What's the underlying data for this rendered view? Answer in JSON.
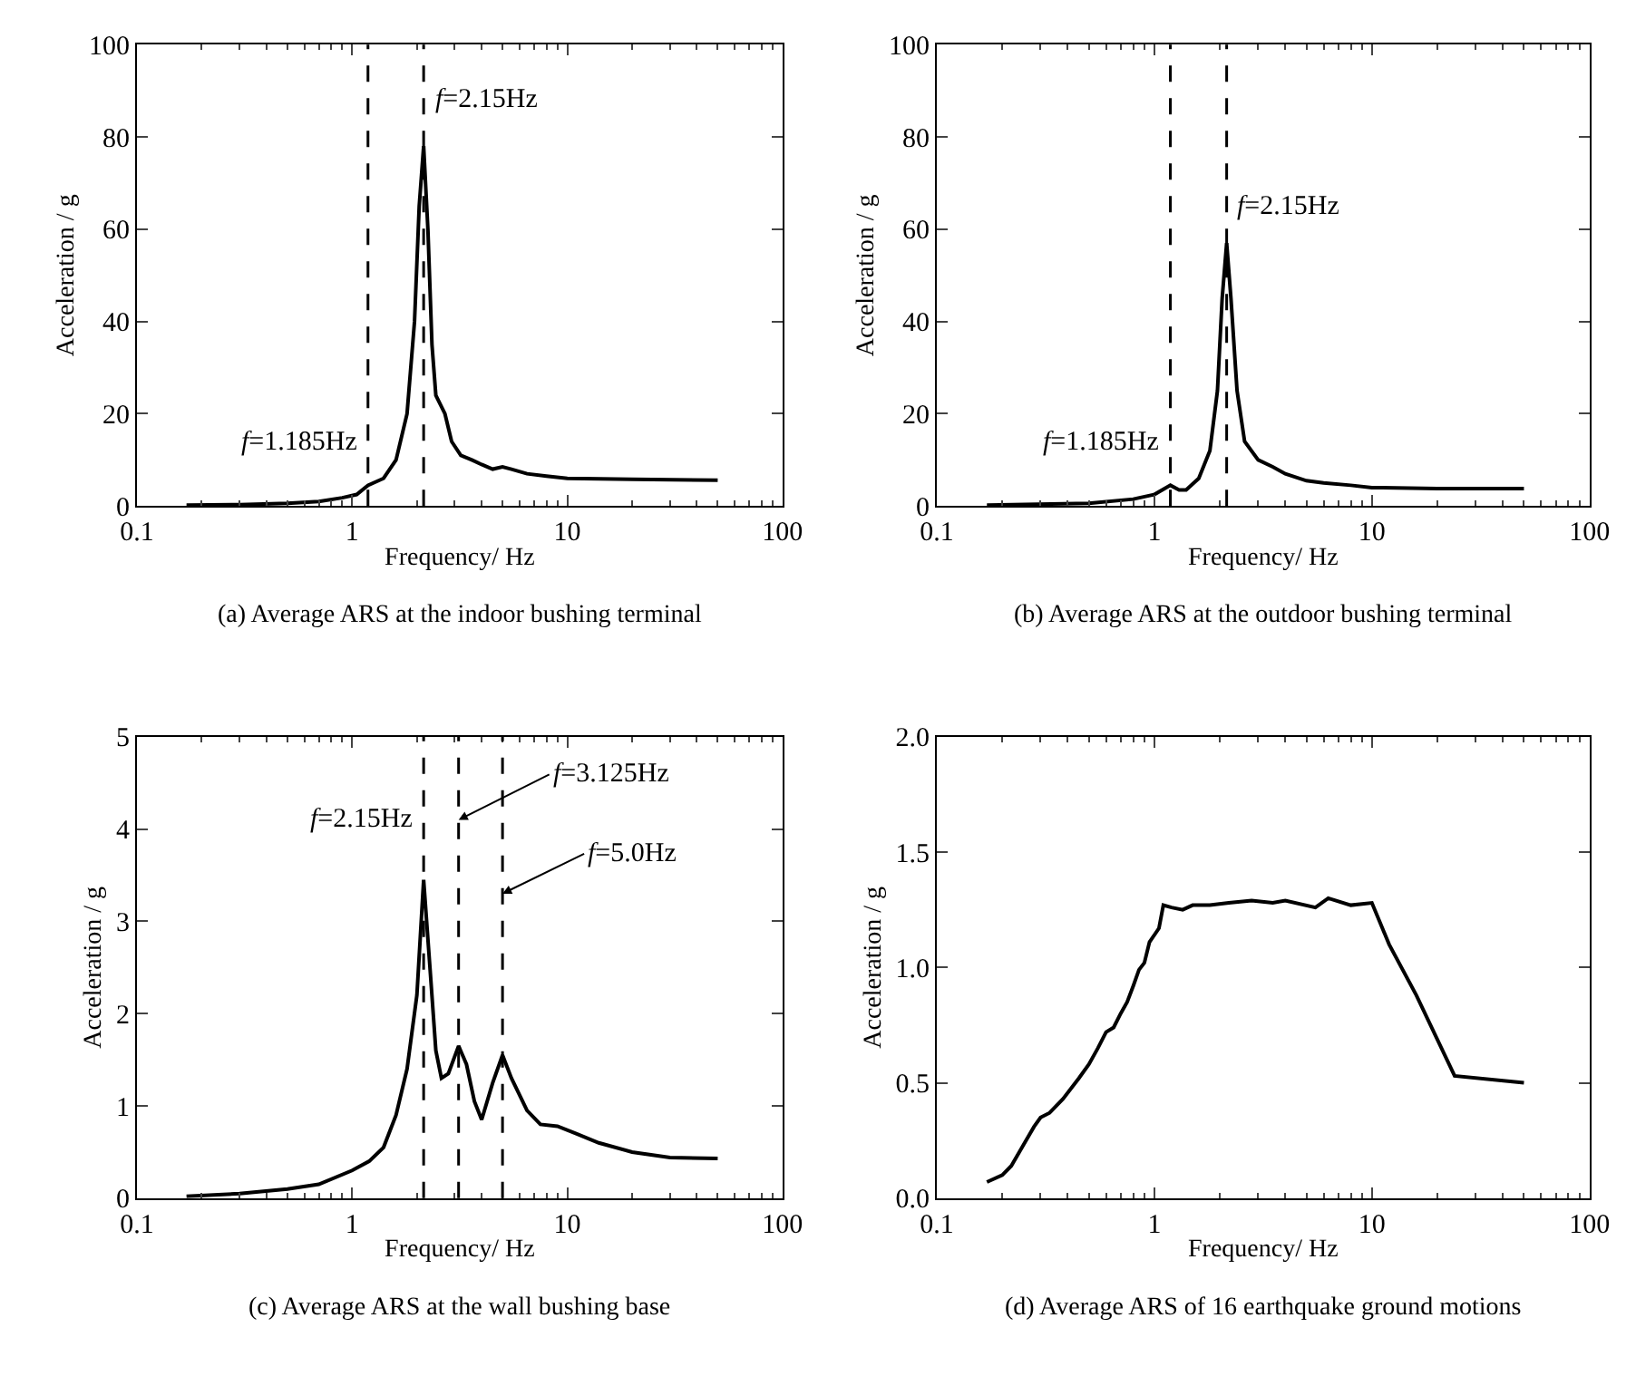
{
  "chart_data": [
    {
      "type": "line",
      "xlabel": "Frequency/ Hz",
      "ylabel": "Acceleration / g",
      "log": "x",
      "xlim": [
        0.1,
        100
      ],
      "xticks": [
        0.1,
        1,
        10,
        100
      ],
      "ylim": [
        0,
        100
      ],
      "yticks": [
        0,
        20,
        40,
        60,
        80,
        100
      ],
      "marker": "none",
      "line_style": "solid",
      "series": [
        {
          "color": "#000000",
          "x": [
            0.17,
            0.3,
            0.5,
            0.7,
            0.9,
            1.05,
            1.185,
            1.4,
            1.6,
            1.8,
            1.95,
            2.05,
            2.15,
            2.25,
            2.35,
            2.45,
            2.7,
            2.9,
            3.2,
            3.6,
            4,
            4.5,
            5,
            5.5,
            6.5,
            8,
            10,
            20,
            50
          ],
          "values": [
            0.2,
            0.3,
            0.6,
            1.0,
            1.8,
            2.5,
            4.5,
            6,
            10,
            20,
            40,
            65,
            78,
            60,
            35,
            24,
            20,
            14,
            11,
            10,
            9,
            8,
            8.5,
            8,
            7,
            6.5,
            6,
            5.8,
            5.6
          ]
        }
      ],
      "ref_lines": [
        {
          "axis": "x",
          "value": 1.185,
          "line_style": "dashed",
          "color": "#000000"
        },
        {
          "axis": "x",
          "value": 2.15,
          "line_style": "dashed",
          "color": "#000000"
        }
      ],
      "annotations": [
        {
          "text": "f=2.15Hz",
          "x": 2.15,
          "y": 88
        },
        {
          "text": "f=1.185Hz",
          "x": 1.185,
          "y": 14
        },
        "(a) Average ARS at the indoor bushing terminal"
      ]
    },
    {
      "type": "line",
      "xlabel": "Frequency/ Hz",
      "ylabel": "Acceleration / g",
      "log": "x",
      "xlim": [
        0.1,
        100
      ],
      "xticks": [
        0.1,
        1,
        10,
        100
      ],
      "ylim": [
        0,
        100
      ],
      "yticks": [
        0,
        20,
        40,
        60,
        80,
        100
      ],
      "marker": "none",
      "line_style": "solid",
      "series": [
        {
          "color": "#000000",
          "x": [
            0.17,
            0.5,
            0.8,
            1.0,
            1.185,
            1.3,
            1.4,
            1.6,
            1.8,
            1.95,
            2.05,
            2.15,
            2.25,
            2.4,
            2.6,
            3,
            3.5,
            4,
            5,
            6,
            8,
            10,
            20,
            50
          ],
          "values": [
            0.2,
            0.6,
            1.5,
            2.5,
            4.5,
            3.5,
            3.5,
            6,
            12,
            25,
            45,
            57,
            45,
            25,
            14,
            10,
            8.5,
            7,
            5.5,
            5,
            4.5,
            4,
            3.8,
            3.8
          ]
        }
      ],
      "ref_lines": [
        {
          "axis": "x",
          "value": 1.185,
          "line_style": "dashed",
          "color": "#000000"
        },
        {
          "axis": "x",
          "value": 2.15,
          "line_style": "dashed",
          "color": "#000000"
        }
      ],
      "annotations": [
        {
          "text": "f=2.15Hz",
          "x": 2.15,
          "y": 65
        },
        {
          "text": "f=1.185Hz",
          "x": 1.185,
          "y": 14
        },
        "(b) Average ARS at the outdoor bushing terminal"
      ]
    },
    {
      "type": "line",
      "xlabel": "Frequency/ Hz",
      "ylabel": "Acceleration / g",
      "log": "x",
      "xlim": [
        0.1,
        100
      ],
      "xticks": [
        0.1,
        1,
        10,
        100
      ],
      "ylim": [
        0,
        5
      ],
      "yticks": [
        0,
        1,
        2,
        3,
        4,
        5
      ],
      "marker": "none",
      "line_style": "solid",
      "series": [
        {
          "color": "#000000",
          "x": [
            0.17,
            0.3,
            0.5,
            0.7,
            1.0,
            1.2,
            1.4,
            1.6,
            1.8,
            2.0,
            2.15,
            2.3,
            2.45,
            2.6,
            2.8,
            3.125,
            3.4,
            3.7,
            4.0,
            4.5,
            5.0,
            5.5,
            6.5,
            7.5,
            9,
            11,
            14,
            20,
            30,
            50
          ],
          "values": [
            0.02,
            0.05,
            0.1,
            0.15,
            0.3,
            0.4,
            0.55,
            0.9,
            1.4,
            2.2,
            3.45,
            2.5,
            1.6,
            1.3,
            1.35,
            1.65,
            1.45,
            1.05,
            0.85,
            1.25,
            1.55,
            1.3,
            0.95,
            0.8,
            0.78,
            0.7,
            0.6,
            0.5,
            0.44,
            0.43
          ]
        }
      ],
      "ref_lines": [
        {
          "axis": "x",
          "value": 2.15,
          "line_style": "dashed",
          "color": "#000000"
        },
        {
          "axis": "x",
          "value": 3.125,
          "line_style": "dashed",
          "color": "#000000"
        },
        {
          "axis": "x",
          "value": 5.0,
          "line_style": "dashed",
          "color": "#000000"
        }
      ],
      "annotations": [
        {
          "text": "f=2.15Hz",
          "x": 2.15,
          "y": 4.1
        },
        {
          "text": "f=3.125Hz",
          "x": 3.125,
          "y": 4.1
        },
        {
          "text": "f=5.0Hz",
          "x": 5.0,
          "y": 3.3
        },
        "(c) Average ARS at the wall bushing base"
      ]
    },
    {
      "type": "line",
      "xlabel": "Frequency/ Hz",
      "ylabel": "Acceleration / g",
      "log": "x",
      "xlim": [
        0.1,
        100
      ],
      "xticks": [
        0.1,
        1,
        10,
        100
      ],
      "ylim": [
        0,
        2
      ],
      "yticks": [
        {
          "value": 0,
          "label": "0.0"
        },
        0.5,
        {
          "value": 1,
          "label": "1.0"
        },
        1.5,
        {
          "value": 2,
          "label": "2.0"
        }
      ],
      "marker": "none",
      "line_style": "solid",
      "series": [
        {
          "color": "#000000",
          "x": [
            0.17,
            0.2,
            0.22,
            0.25,
            0.28,
            0.3,
            0.33,
            0.38,
            0.45,
            0.5,
            0.55,
            0.6,
            0.65,
            0.7,
            0.75,
            0.8,
            0.85,
            0.9,
            0.95,
            1.05,
            1.1,
            1.2,
            1.35,
            1.5,
            1.8,
            2.2,
            2.8,
            3.5,
            4,
            5.5,
            6.3,
            8,
            10,
            12,
            16,
            24,
            50
          ],
          "values": [
            0.07,
            0.1,
            0.14,
            0.23,
            0.31,
            0.35,
            0.37,
            0.43,
            0.52,
            0.58,
            0.65,
            0.72,
            0.74,
            0.8,
            0.85,
            0.92,
            0.99,
            1.02,
            1.11,
            1.17,
            1.27,
            1.26,
            1.25,
            1.27,
            1.27,
            1.28,
            1.29,
            1.28,
            1.29,
            1.26,
            1.3,
            1.27,
            1.28,
            1.1,
            0.88,
            0.53,
            0.5
          ]
        }
      ],
      "annotations": [
        "(d) Average ARS of 16 earthquake ground motions"
      ]
    }
  ]
}
